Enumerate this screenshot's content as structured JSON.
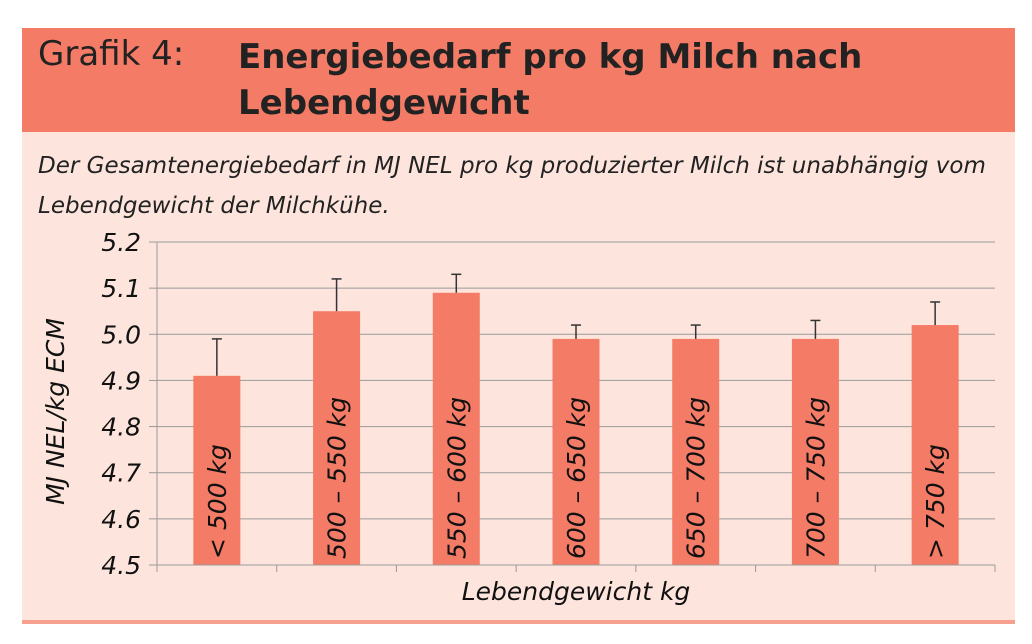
{
  "header": {
    "grafik_label": "Grafik 4:",
    "title": "Energiebedarf pro kg Milch nach Lebendgewicht",
    "subtitle": "Der Gesamtenergiebedarf in MJ NEL pro kg produzierter Milch ist unabhängig vom Lebendgewicht der Milchkühe."
  },
  "colors": {
    "header_bg": "#f47b66",
    "frame_bg": "#fde5dd",
    "bar": "#f47b66",
    "grid": "#9a9a9a"
  },
  "chart_data": {
    "type": "bar",
    "categories": [
      "< 500 kg",
      "500 – 550 kg",
      "550 – 600 kg",
      "600 – 650 kg",
      "650 – 700 kg",
      "700 – 750 kg",
      "> 750 kg"
    ],
    "values": [
      4.91,
      5.05,
      5.09,
      4.99,
      4.99,
      4.99,
      5.02
    ],
    "error_upper": [
      0.08,
      0.07,
      0.04,
      0.03,
      0.03,
      0.04,
      0.05
    ],
    "xlabel": "Lebendgewicht kg",
    "ylabel": "MJ NEL/kg ECM",
    "ylim": [
      4.5,
      5.2
    ],
    "yticks": [
      "5.2",
      "5.1",
      "5.0",
      "4.9",
      "4.8",
      "4.7",
      "4.6",
      "4.5"
    ],
    "grid": true,
    "legend": "none",
    "category_labels_inside_bars": true
  }
}
